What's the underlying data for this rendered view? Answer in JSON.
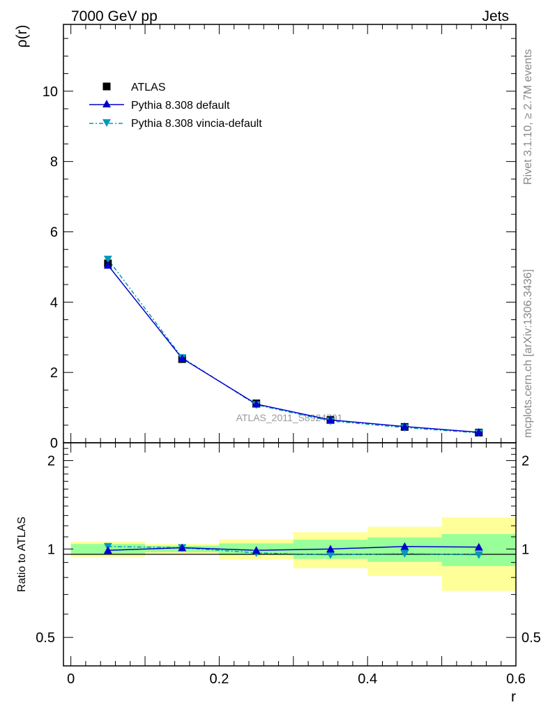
{
  "header": {
    "left": "7000 GeV pp",
    "right": "Jets"
  },
  "side_labels": {
    "rivet": "Rivet 3.1.10, ≥ 2.7M events",
    "mcplots": "mcplots.cern.ch [arXiv:1306.3436]"
  },
  "watermark": "ATLAS_2011_S8924791",
  "colors": {
    "data": "#000000",
    "default": "#0000cc",
    "vincia": "#0099bb",
    "band_inner": "#99ff99",
    "band_outer": "#ffff99"
  },
  "chart_data": [
    {
      "type": "line",
      "panel": "main",
      "ylabel": "ρ(r)",
      "xlabel": "",
      "xlim": [
        -0.01,
        0.6
      ],
      "ylim": [
        0,
        11.9
      ],
      "y_ticks": [
        0,
        2,
        4,
        6,
        8,
        10
      ],
      "y_tick_labels": [
        "0",
        "2",
        "4",
        "6",
        "8",
        "10"
      ],
      "legend_position": "top-left",
      "x": [
        0.05,
        0.15,
        0.25,
        0.35,
        0.45,
        0.55
      ],
      "series": [
        {
          "name": "ATLAS",
          "marker": "square",
          "color": "#000000",
          "values": [
            5.1,
            2.38,
            1.12,
            0.65,
            0.45,
            0.29
          ]
        },
        {
          "name": "Pythia 8.308 default",
          "marker": "triangle-up",
          "line": "solid",
          "color": "#0000cc",
          "values": [
            5.05,
            2.4,
            1.1,
            0.65,
            0.46,
            0.3
          ]
        },
        {
          "name": "Pythia 8.308 vincia-default",
          "marker": "triangle-down",
          "line": "dashdot",
          "color": "#0099bb",
          "values": [
            5.22,
            2.42,
            1.08,
            0.62,
            0.43,
            0.28
          ]
        }
      ]
    },
    {
      "type": "line",
      "panel": "ratio",
      "ylabel": "Ratio to ATLAS",
      "xlabel": "r",
      "xlim": [
        -0.01,
        0.6
      ],
      "ylim": [
        0.4,
        2.3
      ],
      "y_ticks": [
        0.5,
        1,
        2
      ],
      "y_tick_labels": [
        "0.5",
        "1",
        "2"
      ],
      "x_ticks": [
        0,
        0.2,
        0.4,
        0.6
      ],
      "x_tick_labels": [
        "0",
        "0.2",
        "0.4",
        "0.6"
      ],
      "bins": [
        [
          0,
          0.1
        ],
        [
          0.1,
          0.2
        ],
        [
          0.2,
          0.3
        ],
        [
          0.3,
          0.4
        ],
        [
          0.4,
          0.5
        ],
        [
          0.5,
          0.6
        ]
      ],
      "band_inner": [
        [
          0.96,
          1.04
        ],
        [
          0.975,
          1.025
        ],
        [
          0.955,
          1.045
        ],
        [
          0.925,
          1.075
        ],
        [
          0.905,
          1.095
        ],
        [
          0.875,
          1.125
        ]
      ],
      "band_outer": [
        [
          0.94,
          1.06
        ],
        [
          0.96,
          1.04
        ],
        [
          0.92,
          1.08
        ],
        [
          0.86,
          1.14
        ],
        [
          0.81,
          1.19
        ],
        [
          0.72,
          1.28
        ]
      ],
      "x": [
        0.05,
        0.15,
        0.25,
        0.35,
        0.45,
        0.55
      ],
      "series": [
        {
          "name": "Pythia 8.308 default",
          "marker": "triangle-up",
          "line": "solid",
          "color": "#0000cc",
          "values": [
            0.99,
            1.01,
            0.99,
            1.0,
            1.02,
            1.015
          ]
        },
        {
          "name": "Pythia 8.308 vincia-default",
          "marker": "triangle-down",
          "line": "dashdot",
          "color": "#0099bb",
          "values": [
            1.02,
            1.01,
            0.97,
            0.955,
            0.965,
            0.955
          ]
        }
      ]
    }
  ]
}
